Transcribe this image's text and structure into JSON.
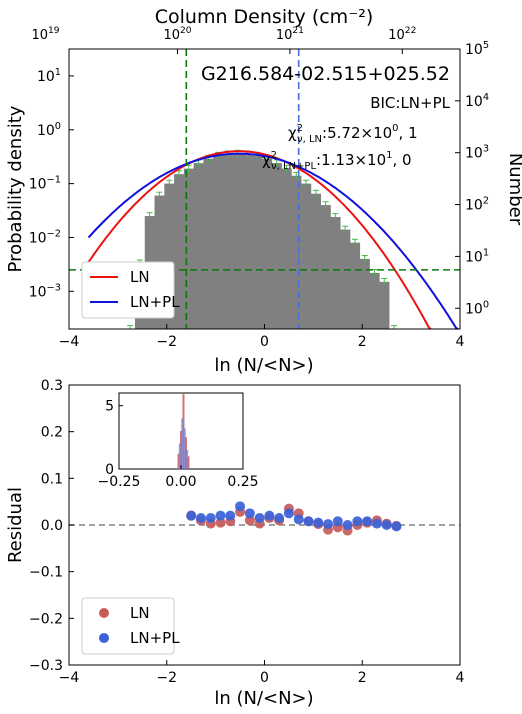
{
  "chart_data": [
    {
      "type": "bar",
      "title": "G216.584-02.515+025.52",
      "xlabel": "ln (N/<N>)",
      "ylabel": "Probability density",
      "ylabel_right": "Number",
      "top_xlabel": "Column Density (cm⁻²)",
      "xlim": [
        -4,
        4
      ],
      "ylim_log": [
        -3.7,
        1.5
      ],
      "x_ticks": [
        "−4",
        "−2",
        "0",
        "2",
        "4"
      ],
      "y_ticks": [
        {
          "exp": -3,
          "label": "10",
          "sup": "−3"
        },
        {
          "exp": -2,
          "label": "10",
          "sup": "−2"
        },
        {
          "exp": -1,
          "label": "10",
          "sup": "−1"
        },
        {
          "exp": 0,
          "label": "10",
          "sup": "0"
        },
        {
          "exp": 1,
          "label": "10",
          "sup": "1"
        }
      ],
      "right_ticks": [
        {
          "exp": 0,
          "label": "10",
          "sup": "0"
        },
        {
          "exp": 1,
          "label": "10",
          "sup": "1"
        },
        {
          "exp": 2,
          "label": "10",
          "sup": "2"
        },
        {
          "exp": 3,
          "label": "10",
          "sup": "3"
        },
        {
          "exp": 4,
          "label": "10",
          "sup": "4"
        },
        {
          "exp": 5,
          "label": "10",
          "sup": "5"
        }
      ],
      "top_ticks": [
        {
          "x": -4.48,
          "label": "10",
          "sup": "19"
        },
        {
          "x": -1.78,
          "label": "10",
          "sup": "20"
        },
        {
          "x": 0.52,
          "label": "10",
          "sup": "21"
        },
        {
          "x": 2.82,
          "label": "10",
          "sup": "22"
        }
      ],
      "hist_bins": {
        "x": [
          -2.75,
          -2.55,
          -2.35,
          -2.15,
          -1.95,
          -1.75,
          -1.55,
          -1.35,
          -1.15,
          -0.95,
          -0.75,
          -0.55,
          -0.35,
          -0.15,
          0.05,
          0.25,
          0.45,
          0.65,
          0.85,
          1.05,
          1.25,
          1.45,
          1.65,
          1.85,
          2.05,
          2.25,
          2.45,
          2.65
        ],
        "density": [
          0.0002,
          0.0033,
          0.025,
          0.06,
          0.1,
          0.15,
          0.19,
          0.24,
          0.29,
          0.33,
          0.35,
          0.36,
          0.35,
          0.33,
          0.29,
          0.24,
          0.19,
          0.14,
          0.1,
          0.065,
          0.04,
          0.024,
          0.014,
          0.008,
          0.004,
          0.0022,
          0.0015,
          0.0002
        ],
        "width": 0.2,
        "color": "#808080"
      },
      "series": [
        {
          "name": "LN",
          "color": "#ee1111",
          "mu": -0.52,
          "sigma": 1.0,
          "amp": 0.4
        },
        {
          "name": "LN+PL",
          "color": "#1111dd",
          "mu": -0.52,
          "sigma": 1.15,
          "amp": 0.36
        }
      ],
      "annotations": {
        "bic": "BIC:LN+PL",
        "chi_ln_prefix": "χ",
        "chi_ln_sub": "ν, LN",
        "chi_ln_text": ":5.72×10",
        "chi_ln_exp": "0",
        "chi_ln_tail": ", 1",
        "chi_lnpl_prefix": "χ",
        "chi_lnpl_sub": "ν, LN+PL",
        "chi_lnpl_text": ":1.13×10",
        "chi_lnpl_exp": "1",
        "chi_lnpl_tail": ", 0",
        "chi_sup": "2"
      },
      "vlines": [
        {
          "x": -1.6,
          "color": "#0a7a0a"
        },
        {
          "x": 0.7,
          "color": "#4a6ee0"
        }
      ],
      "hline": {
        "y": 0.0025,
        "color": "#0a7a0a"
      },
      "legend": {
        "placement": "lower-left",
        "entries": [
          "LN",
          "LN+PL"
        ]
      },
      "grid": false
    },
    {
      "type": "scatter",
      "xlabel": "ln (N/<N>)",
      "ylabel": "Residual",
      "xlim": [
        -4,
        4
      ],
      "ylim": [
        -0.3,
        0.3
      ],
      "x_ticks": [
        "−4",
        "−2",
        "0",
        "2",
        "4"
      ],
      "y_ticks": [
        "0.3",
        "0.2",
        "0.1",
        "0.0",
        "−0.1",
        "−0.2",
        "−0.3"
      ],
      "y_tick_values": [
        0.3,
        0.2,
        0.1,
        0.0,
        -0.1,
        -0.2,
        -0.3
      ],
      "series": [
        {
          "name": "LN",
          "color": "#c85a5a",
          "x": [
            -1.5,
            -1.3,
            -1.1,
            -0.9,
            -0.7,
            -0.5,
            -0.3,
            -0.1,
            0.1,
            0.3,
            0.5,
            0.7,
            0.9,
            1.1,
            1.3,
            1.5,
            1.7,
            1.9,
            2.1,
            2.3,
            2.5,
            2.7
          ],
          "y": [
            0.02,
            0.01,
            0.003,
            0.005,
            0.008,
            0.028,
            0.01,
            0.003,
            0.015,
            0.01,
            0.035,
            0.025,
            0.008,
            0.002,
            -0.01,
            -0.005,
            -0.012,
            0.0,
            0.005,
            0.01,
            0.003,
            -0.002
          ]
        },
        {
          "name": "LN+PL",
          "color": "#3a62d8",
          "x": [
            -1.5,
            -1.3,
            -1.1,
            -0.9,
            -0.7,
            -0.5,
            -0.3,
            -0.1,
            0.1,
            0.3,
            0.5,
            0.7,
            0.9,
            1.1,
            1.3,
            1.5,
            1.7,
            1.9,
            2.1,
            2.3,
            2.5,
            2.7
          ],
          "y": [
            0.02,
            0.015,
            0.015,
            0.02,
            0.02,
            0.04,
            0.025,
            0.015,
            0.02,
            0.015,
            0.025,
            0.012,
            0.008,
            0.005,
            0.002,
            0.008,
            0.0,
            0.008,
            0.008,
            0.003,
            0.0,
            -0.003
          ]
        }
      ],
      "zero_line": {
        "y": 0.0,
        "color": "#808080"
      },
      "legend": {
        "placement": "lower-left",
        "entries": [
          "LN",
          "LN+PL"
        ]
      },
      "inset": {
        "xlim": [
          -0.25,
          0.25
        ],
        "ylim": [
          0,
          6
        ],
        "x_ticks": [
          "−0.25",
          "0.00",
          "0.25"
        ],
        "x_tick_values": [
          -0.25,
          0.0,
          0.25
        ],
        "y_ticks": [
          "0",
          "5"
        ],
        "y_tick_values": [
          0,
          5
        ],
        "ln_bars": {
          "x": [
            -0.01,
            0.0,
            0.01,
            0.02,
            0.03
          ],
          "heights": [
            1.2,
            3.0,
            5.9,
            2.5,
            1.0
          ],
          "color": "#c85a5a"
        },
        "lnpl_bars": {
          "x": [
            -0.005,
            0.005,
            0.015,
            0.025
          ],
          "heights": [
            2.0,
            4.0,
            3.2,
            1.5
          ],
          "color": "#6f7fd8"
        }
      },
      "grid": false
    }
  ]
}
